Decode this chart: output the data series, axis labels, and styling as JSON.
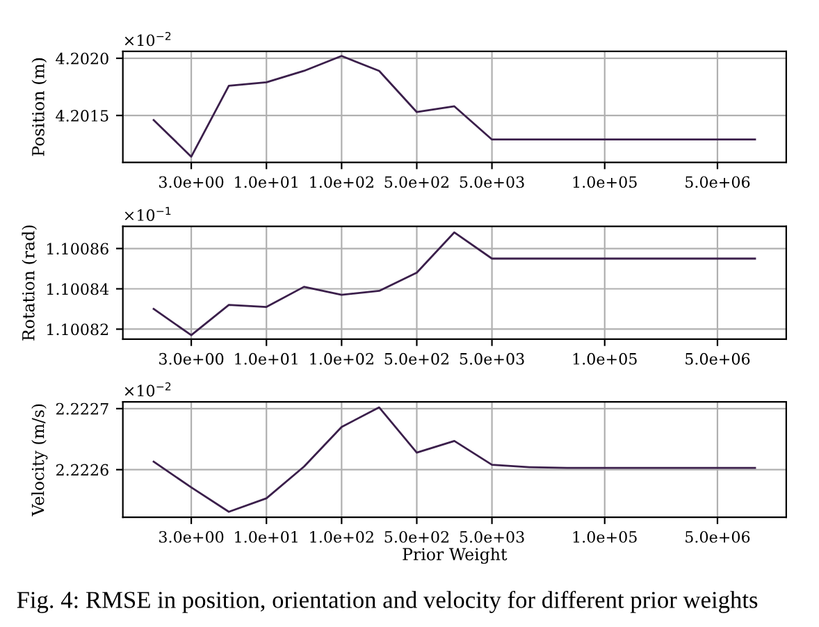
{
  "chart_data": [
    {
      "type": "line",
      "ylabel": "Position (m)",
      "annotations": [
        "×10$^{−2}$"
      ],
      "categories": [
        null,
        "3.0e+00",
        null,
        "1.0e+01",
        null,
        "1.0e+02",
        null,
        "5.0e+02",
        null,
        "5.0e+03",
        null,
        null,
        "1.0e+05",
        null,
        null,
        "5.0e+06",
        null
      ],
      "series": [
        {
          "color": "#3b1f4b",
          "values": [
            4.20146,
            4.20114,
            4.20176,
            4.20179,
            4.20189,
            4.20202,
            4.20189,
            4.20153,
            4.20158,
            4.20129,
            4.20129,
            4.20129,
            4.20129,
            4.20129,
            4.20129,
            4.20129,
            4.20129
          ]
        }
      ],
      "ylim": [
        4.20109,
        4.20206
      ],
      "yticks": [
        {
          "value": 4.2015,
          "label": "4.2015"
        },
        {
          "value": 4.202,
          "label": "4.2020"
        }
      ],
      "grid": true
    },
    {
      "type": "line",
      "ylabel": "Rotation (rad)",
      "annotations": [
        "×10$^{−1}$"
      ],
      "categories": [
        null,
        "3.0e+00",
        null,
        "1.0e+01",
        null,
        "1.0e+02",
        null,
        "5.0e+02",
        null,
        "5.0e+03",
        null,
        null,
        "1.0e+05",
        null,
        null,
        "5.0e+06",
        null
      ],
      "series": [
        {
          "color": "#3b1f4b",
          "values": [
            1.10083,
            1.100817,
            1.100832,
            1.100831,
            1.100841,
            1.100837,
            1.100839,
            1.100848,
            1.100868,
            1.100855,
            1.100855,
            1.100855,
            1.100855,
            1.100855,
            1.100855,
            1.100855,
            1.100855
          ]
        }
      ],
      "ylim": [
        1.100815,
        1.100871
      ],
      "yticks": [
        1.10082,
        1.10084,
        1.10086
      ],
      "grid": true
    },
    {
      "type": "line",
      "xlabel": "Prior Weight",
      "ylabel": "Velocity (m/s)",
      "annotations": [
        "×10$^{−2}$",
        "Fig. 4: RMSE in position, orientation and velocity for different prior weights"
      ],
      "categories": [
        null,
        "3.0e+00",
        null,
        "1.0e+01",
        null,
        "1.0e+02",
        null,
        "5.0e+02",
        null,
        "5.0e+03",
        null,
        null,
        "1.0e+05",
        null,
        null,
        "5.0e+06",
        null
      ],
      "series": [
        {
          "color": "#3b1f4b",
          "values": [
            2.222613,
            2.222571,
            2.222531,
            2.222553,
            2.222605,
            2.22267,
            2.222702,
            2.222628,
            2.222647,
            2.222608,
            2.222604,
            2.222603,
            2.222603,
            2.222603,
            2.222603,
            2.222603,
            2.222603
          ]
        }
      ],
      "ylim": [
        2.222522,
        2.222711
      ],
      "yticks": [
        {
          "value": 2.2226,
          "label": "2.2226"
        },
        {
          "value": 2.2227,
          "label": "2.2227"
        }
      ],
      "grid": true
    }
  ]
}
